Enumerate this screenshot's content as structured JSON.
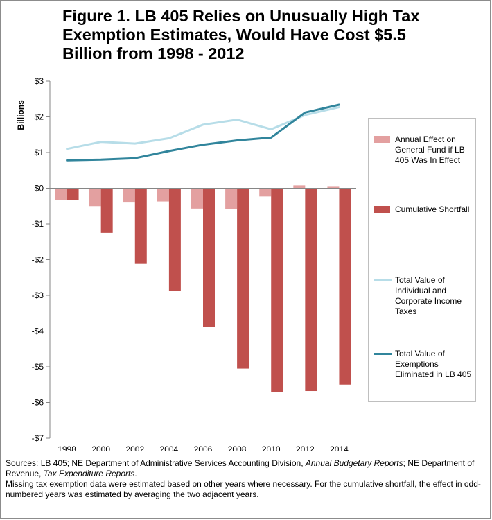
{
  "title": "Figure 1. LB 405 Relies on Unusually High Tax Exemption Estimates, Would Have Cost $5.5 Billion from 1998 - 2012",
  "chart_data": {
    "type": "bar+line",
    "ylabel": "Billions",
    "ylim": [
      -7,
      3
    ],
    "yticks": [
      3,
      2,
      1,
      0,
      -1,
      -2,
      -3,
      -4,
      -5,
      -6,
      -7
    ],
    "ytick_labels": [
      "$3",
      "$2",
      "$1",
      "$0",
      "-$1",
      "-$2",
      "-$3",
      "-$4",
      "-$5",
      "-$6",
      "-$7"
    ],
    "categories": [
      "1998",
      "2000",
      "2002",
      "2004",
      "2006",
      "2008",
      "2010",
      "2012",
      "2014"
    ],
    "bar_series": [
      {
        "name": "Annual Effect on General Fund if LB 405 Was In Effect",
        "color": "#e3a0a0",
        "values": [
          -0.33,
          -0.5,
          -0.4,
          -0.37,
          -0.57,
          -0.58,
          -0.23,
          0.08,
          0.06
        ]
      },
      {
        "name": "Cumulative Shortfall",
        "color": "#c0504d",
        "values": [
          -0.33,
          -1.25,
          -2.12,
          -2.88,
          -3.88,
          -5.05,
          -5.7,
          -5.68,
          -5.5
        ]
      }
    ],
    "line_series": [
      {
        "name": "Total Value of Individual and Corporate Income Taxes",
        "color": "#b7dde8",
        "values": [
          1.1,
          1.3,
          1.25,
          1.4,
          1.78,
          1.92,
          1.65,
          2.05,
          2.27
        ]
      },
      {
        "name": "Total Value of Exemptions Eliminated in LB 405",
        "color": "#31859c",
        "values": [
          0.78,
          0.8,
          0.84,
          1.04,
          1.22,
          1.34,
          1.42,
          2.12,
          2.34
        ]
      }
    ],
    "grid": false,
    "legend_position": "right"
  },
  "legend": [
    {
      "label": "Annual Effect on General Fund if LB 405 Was In Effect",
      "kind": "bar",
      "color": "#e3a0a0"
    },
    {
      "label": "Cumulative Shortfall",
      "kind": "bar",
      "color": "#c0504d"
    },
    {
      "label": "Total Value of Individual and Corporate Income Taxes",
      "kind": "line",
      "color": "#b7dde8"
    },
    {
      "label": "Total Value of Exemptions Eliminated in LB 405",
      "kind": "line",
      "color": "#31859c"
    }
  ],
  "sources": {
    "prefix": "Sources: LB 405; NE Department of Administrative Services Accounting Division, ",
    "report1": "Annual Budgetary Reports",
    "middle": "; NE Department of Revenue, ",
    "report2": "Tax Expenditure Reports",
    "suffix": ".",
    "note": "Missing tax exemption data were estimated based on other years where necessary. For the cumulative shortfall, the effect in odd-numbered years was estimated by averaging the two adjacent years."
  }
}
